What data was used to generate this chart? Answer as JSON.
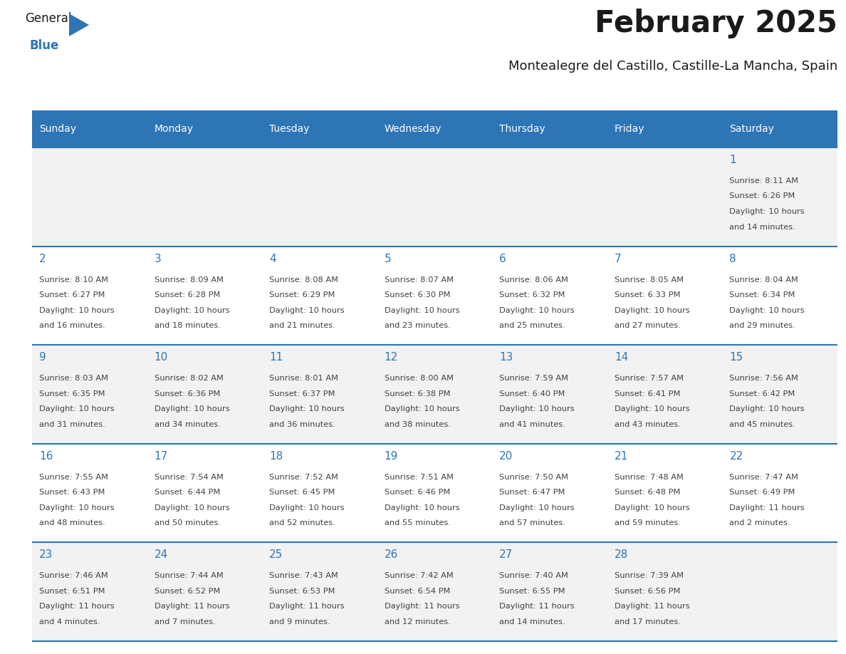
{
  "title": "February 2025",
  "subtitle": "Montealegre del Castillo, Castille-La Mancha, Spain",
  "header_bg": "#2E75B6",
  "header_text": "#FFFFFF",
  "cell_bg_row0": "#F2F2F2",
  "cell_bg_row1": "#FFFFFF",
  "row_line_color": "#2E75B6",
  "day_headers": [
    "Sunday",
    "Monday",
    "Tuesday",
    "Wednesday",
    "Thursday",
    "Friday",
    "Saturday"
  ],
  "title_color": "#1a1a1a",
  "subtitle_color": "#1a1a1a",
  "day_number_color": "#2E75B6",
  "info_color": "#404040",
  "logo_general_color": "#1a1a1a",
  "logo_blue_color": "#2E75B6",
  "logo_triangle_color": "#2E75B6",
  "weeks": [
    [
      {
        "day": null,
        "sunrise": null,
        "sunset": null,
        "daylight_line1": null,
        "daylight_line2": null
      },
      {
        "day": null,
        "sunrise": null,
        "sunset": null,
        "daylight_line1": null,
        "daylight_line2": null
      },
      {
        "day": null,
        "sunrise": null,
        "sunset": null,
        "daylight_line1": null,
        "daylight_line2": null
      },
      {
        "day": null,
        "sunrise": null,
        "sunset": null,
        "daylight_line1": null,
        "daylight_line2": null
      },
      {
        "day": null,
        "sunrise": null,
        "sunset": null,
        "daylight_line1": null,
        "daylight_line2": null
      },
      {
        "day": null,
        "sunrise": null,
        "sunset": null,
        "daylight_line1": null,
        "daylight_line2": null
      },
      {
        "day": 1,
        "sunrise": "Sunrise: 8:11 AM",
        "sunset": "Sunset: 6:26 PM",
        "daylight_line1": "Daylight: 10 hours",
        "daylight_line2": "and 14 minutes."
      }
    ],
    [
      {
        "day": 2,
        "sunrise": "Sunrise: 8:10 AM",
        "sunset": "Sunset: 6:27 PM",
        "daylight_line1": "Daylight: 10 hours",
        "daylight_line2": "and 16 minutes."
      },
      {
        "day": 3,
        "sunrise": "Sunrise: 8:09 AM",
        "sunset": "Sunset: 6:28 PM",
        "daylight_line1": "Daylight: 10 hours",
        "daylight_line2": "and 18 minutes."
      },
      {
        "day": 4,
        "sunrise": "Sunrise: 8:08 AM",
        "sunset": "Sunset: 6:29 PM",
        "daylight_line1": "Daylight: 10 hours",
        "daylight_line2": "and 21 minutes."
      },
      {
        "day": 5,
        "sunrise": "Sunrise: 8:07 AM",
        "sunset": "Sunset: 6:30 PM",
        "daylight_line1": "Daylight: 10 hours",
        "daylight_line2": "and 23 minutes."
      },
      {
        "day": 6,
        "sunrise": "Sunrise: 8:06 AM",
        "sunset": "Sunset: 6:32 PM",
        "daylight_line1": "Daylight: 10 hours",
        "daylight_line2": "and 25 minutes."
      },
      {
        "day": 7,
        "sunrise": "Sunrise: 8:05 AM",
        "sunset": "Sunset: 6:33 PM",
        "daylight_line1": "Daylight: 10 hours",
        "daylight_line2": "and 27 minutes."
      },
      {
        "day": 8,
        "sunrise": "Sunrise: 8:04 AM",
        "sunset": "Sunset: 6:34 PM",
        "daylight_line1": "Daylight: 10 hours",
        "daylight_line2": "and 29 minutes."
      }
    ],
    [
      {
        "day": 9,
        "sunrise": "Sunrise: 8:03 AM",
        "sunset": "Sunset: 6:35 PM",
        "daylight_line1": "Daylight: 10 hours",
        "daylight_line2": "and 31 minutes."
      },
      {
        "day": 10,
        "sunrise": "Sunrise: 8:02 AM",
        "sunset": "Sunset: 6:36 PM",
        "daylight_line1": "Daylight: 10 hours",
        "daylight_line2": "and 34 minutes."
      },
      {
        "day": 11,
        "sunrise": "Sunrise: 8:01 AM",
        "sunset": "Sunset: 6:37 PM",
        "daylight_line1": "Daylight: 10 hours",
        "daylight_line2": "and 36 minutes."
      },
      {
        "day": 12,
        "sunrise": "Sunrise: 8:00 AM",
        "sunset": "Sunset: 6:38 PM",
        "daylight_line1": "Daylight: 10 hours",
        "daylight_line2": "and 38 minutes."
      },
      {
        "day": 13,
        "sunrise": "Sunrise: 7:59 AM",
        "sunset": "Sunset: 6:40 PM",
        "daylight_line1": "Daylight: 10 hours",
        "daylight_line2": "and 41 minutes."
      },
      {
        "day": 14,
        "sunrise": "Sunrise: 7:57 AM",
        "sunset": "Sunset: 6:41 PM",
        "daylight_line1": "Daylight: 10 hours",
        "daylight_line2": "and 43 minutes."
      },
      {
        "day": 15,
        "sunrise": "Sunrise: 7:56 AM",
        "sunset": "Sunset: 6:42 PM",
        "daylight_line1": "Daylight: 10 hours",
        "daylight_line2": "and 45 minutes."
      }
    ],
    [
      {
        "day": 16,
        "sunrise": "Sunrise: 7:55 AM",
        "sunset": "Sunset: 6:43 PM",
        "daylight_line1": "Daylight: 10 hours",
        "daylight_line2": "and 48 minutes."
      },
      {
        "day": 17,
        "sunrise": "Sunrise: 7:54 AM",
        "sunset": "Sunset: 6:44 PM",
        "daylight_line1": "Daylight: 10 hours",
        "daylight_line2": "and 50 minutes."
      },
      {
        "day": 18,
        "sunrise": "Sunrise: 7:52 AM",
        "sunset": "Sunset: 6:45 PM",
        "daylight_line1": "Daylight: 10 hours",
        "daylight_line2": "and 52 minutes."
      },
      {
        "day": 19,
        "sunrise": "Sunrise: 7:51 AM",
        "sunset": "Sunset: 6:46 PM",
        "daylight_line1": "Daylight: 10 hours",
        "daylight_line2": "and 55 minutes."
      },
      {
        "day": 20,
        "sunrise": "Sunrise: 7:50 AM",
        "sunset": "Sunset: 6:47 PM",
        "daylight_line1": "Daylight: 10 hours",
        "daylight_line2": "and 57 minutes."
      },
      {
        "day": 21,
        "sunrise": "Sunrise: 7:48 AM",
        "sunset": "Sunset: 6:48 PM",
        "daylight_line1": "Daylight: 10 hours",
        "daylight_line2": "and 59 minutes."
      },
      {
        "day": 22,
        "sunrise": "Sunrise: 7:47 AM",
        "sunset": "Sunset: 6:49 PM",
        "daylight_line1": "Daylight: 11 hours",
        "daylight_line2": "and 2 minutes."
      }
    ],
    [
      {
        "day": 23,
        "sunrise": "Sunrise: 7:46 AM",
        "sunset": "Sunset: 6:51 PM",
        "daylight_line1": "Daylight: 11 hours",
        "daylight_line2": "and 4 minutes."
      },
      {
        "day": 24,
        "sunrise": "Sunrise: 7:44 AM",
        "sunset": "Sunset: 6:52 PM",
        "daylight_line1": "Daylight: 11 hours",
        "daylight_line2": "and 7 minutes."
      },
      {
        "day": 25,
        "sunrise": "Sunrise: 7:43 AM",
        "sunset": "Sunset: 6:53 PM",
        "daylight_line1": "Daylight: 11 hours",
        "daylight_line2": "and 9 minutes."
      },
      {
        "day": 26,
        "sunrise": "Sunrise: 7:42 AM",
        "sunset": "Sunset: 6:54 PM",
        "daylight_line1": "Daylight: 11 hours",
        "daylight_line2": "and 12 minutes."
      },
      {
        "day": 27,
        "sunrise": "Sunrise: 7:40 AM",
        "sunset": "Sunset: 6:55 PM",
        "daylight_line1": "Daylight: 11 hours",
        "daylight_line2": "and 14 minutes."
      },
      {
        "day": 28,
        "sunrise": "Sunrise: 7:39 AM",
        "sunset": "Sunset: 6:56 PM",
        "daylight_line1": "Daylight: 11 hours",
        "daylight_line2": "and 17 minutes."
      },
      {
        "day": null,
        "sunrise": null,
        "sunset": null,
        "daylight_line1": null,
        "daylight_line2": null
      }
    ]
  ]
}
